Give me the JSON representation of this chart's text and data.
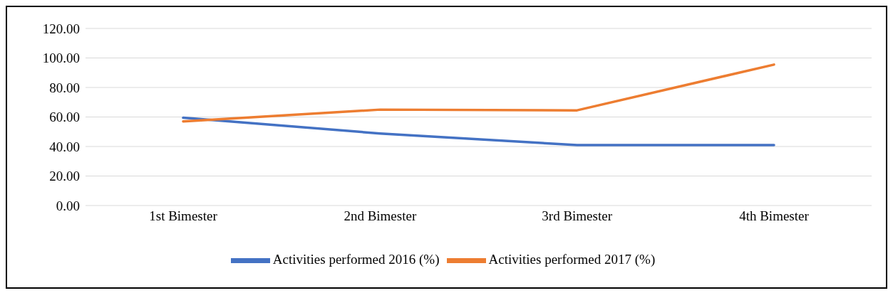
{
  "chart_data": {
    "type": "line",
    "categories": [
      "1st Bimester",
      "2nd Bimester",
      "3rd Bimester",
      "4th Bimester"
    ],
    "series": [
      {
        "name": "Activities performed 2016 (%)",
        "color": "#4472c4",
        "values": [
          59.5,
          48.8,
          41,
          41
        ]
      },
      {
        "name": "Activities performed 2017 (%)",
        "color": "#ed7d31",
        "values": [
          57,
          65,
          64.5,
          95.5
        ]
      }
    ],
    "ylim": [
      0,
      120
    ],
    "yticks": [
      {
        "value": 0,
        "label": "0.00"
      },
      {
        "value": 20,
        "label": "20.00"
      },
      {
        "value": 40,
        "label": "40.00"
      },
      {
        "value": 60,
        "label": "60.00"
      },
      {
        "value": 80,
        "label": "80.00"
      },
      {
        "value": 100,
        "label": "100.00"
      },
      {
        "value": 120,
        "label": "120.00"
      }
    ],
    "grid": "y",
    "legend": "bottom",
    "marker": "none",
    "line_style": "solid"
  }
}
